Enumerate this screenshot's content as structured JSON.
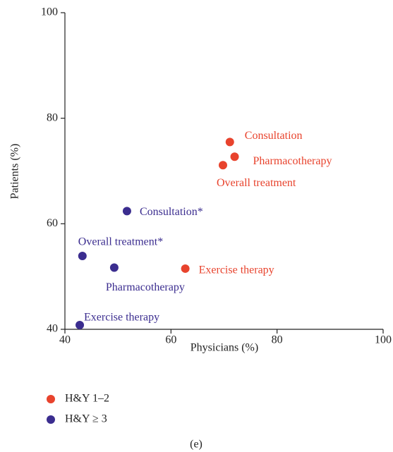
{
  "chart_data": {
    "type": "scatter",
    "xlabel": "Physicians (%)",
    "ylabel": "Patients (%)",
    "xlim": [
      40,
      100
    ],
    "ylim": [
      40,
      100
    ],
    "xticks": [
      40,
      60,
      80,
      100
    ],
    "yticks": [
      40,
      60,
      80,
      100
    ],
    "series": [
      {
        "name": "H&Y 1–2",
        "color": "#e8432d",
        "labels": [
          "Consultation",
          "Pharmacotherapy",
          "Overall treatment",
          "Exercise therapy"
        ],
        "x": [
          71.1,
          72.0,
          69.8,
          62.7
        ],
        "values": [
          75.5,
          72.7,
          71.1,
          51.5
        ]
      },
      {
        "name": "H&Y ≥ 3",
        "color": "#3b2d8f",
        "labels": [
          "Consultation*",
          "Overall treatment*",
          "Pharmacotherapy",
          "Exercise therapy"
        ],
        "x": [
          51.7,
          43.3,
          49.3,
          42.8
        ],
        "values": [
          62.4,
          53.9,
          51.7,
          40.8
        ]
      }
    ],
    "caption": "(e)"
  }
}
